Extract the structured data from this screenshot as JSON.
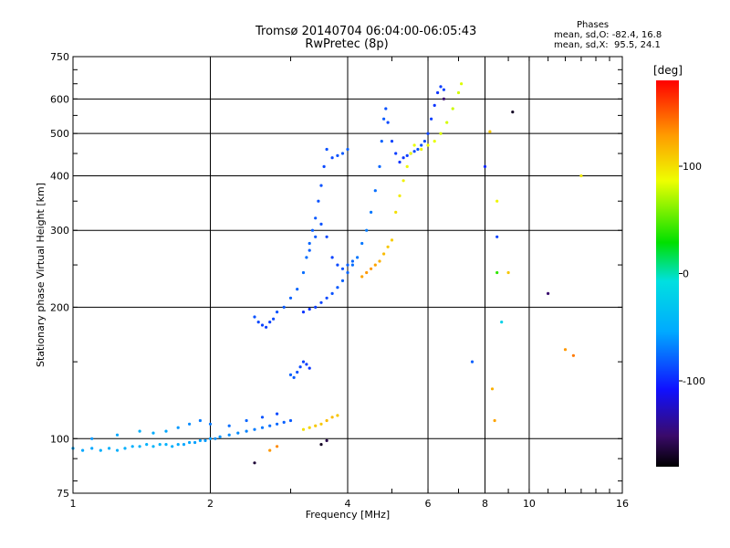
{
  "header": {
    "title_line1": "Tromsø 20140704 06:04:00-06:05:43",
    "title_line2": "RwPretec (8p)"
  },
  "stats": {
    "heading": "Phases",
    "line_o": "mean, sd,O: -82.4, 16.8",
    "line_x": "mean, sd,X:  95.5, 24.1"
  },
  "colorbar": {
    "unit_label": "[deg]",
    "range": [
      -180,
      180
    ],
    "ticks": [
      {
        "value": 100,
        "label": "100"
      },
      {
        "value": 0,
        "label": "0"
      },
      {
        "value": -100,
        "label": "-100"
      }
    ]
  },
  "chart_data": {
    "type": "scatter",
    "title": "Tromsø 20140704 06:04:00-06:05:43",
    "subtitle": "RwPretec (8p)",
    "xlabel": "Frequency [MHz]",
    "ylabel": "Stationary phase Virtual Height [km]",
    "x_scale": "log",
    "y_scale": "log",
    "xlim": [
      1,
      16
    ],
    "ylim": [
      75,
      750
    ],
    "x_ticks": [
      1,
      2,
      4,
      6,
      8,
      10,
      16
    ],
    "x_tick_labels": [
      "1",
      "2",
      "4",
      "6",
      "8",
      "10",
      "16"
    ],
    "y_ticks": [
      75,
      100,
      200,
      300,
      400,
      500,
      600,
      750
    ],
    "y_tick_labels": [
      "75",
      "100",
      "200",
      "300",
      "400",
      "500",
      "600",
      "750"
    ],
    "grid": true,
    "color_quantity": "phase [deg]",
    "series": [
      {
        "points": [
          [
            1.0,
            95,
            -55
          ],
          [
            1.05,
            94,
            -55
          ],
          [
            1.1,
            95,
            -55
          ],
          [
            1.15,
            94,
            -50
          ],
          [
            1.2,
            95,
            -50
          ],
          [
            1.25,
            94,
            -50
          ],
          [
            1.3,
            95,
            -50
          ],
          [
            1.35,
            96,
            -50
          ],
          [
            1.4,
            96,
            -48
          ],
          [
            1.45,
            97,
            -48
          ],
          [
            1.5,
            96,
            -45
          ],
          [
            1.55,
            97,
            -45
          ],
          [
            1.6,
            97,
            -48
          ],
          [
            1.65,
            96,
            -50
          ],
          [
            1.7,
            97,
            -52
          ],
          [
            1.75,
            97,
            -55
          ],
          [
            1.8,
            98,
            -55
          ],
          [
            1.85,
            98,
            -58
          ],
          [
            1.9,
            99,
            -58
          ],
          [
            1.95,
            99,
            -60
          ],
          [
            2.0,
            100,
            -60
          ],
          [
            2.05,
            100,
            -62
          ],
          [
            2.1,
            101,
            -62
          ],
          [
            2.2,
            102,
            -65
          ],
          [
            2.3,
            103,
            -65
          ],
          [
            2.4,
            104,
            -68
          ],
          [
            2.5,
            105,
            -70
          ],
          [
            2.6,
            106,
            -72
          ],
          [
            2.7,
            107,
            -75
          ],
          [
            2.8,
            108,
            -78
          ],
          [
            2.9,
            109,
            -80
          ],
          [
            3.0,
            110,
            -82
          ],
          [
            1.1,
            100,
            -60
          ],
          [
            1.25,
            102,
            -55
          ],
          [
            1.4,
            104,
            -50
          ],
          [
            1.5,
            103,
            -52
          ],
          [
            1.6,
            104,
            -55
          ],
          [
            1.7,
            106,
            -60
          ],
          [
            1.8,
            108,
            -65
          ],
          [
            1.9,
            110,
            -70
          ],
          [
            2.0,
            108,
            -72
          ],
          [
            2.2,
            107,
            -75
          ],
          [
            2.4,
            110,
            -78
          ],
          [
            2.6,
            112,
            -85
          ],
          [
            2.8,
            114,
            -88
          ]
        ]
      },
      {
        "points": [
          [
            2.5,
            190,
            -85
          ],
          [
            2.55,
            185,
            -88
          ],
          [
            2.6,
            182,
            -90
          ],
          [
            2.65,
            180,
            -92
          ],
          [
            2.7,
            185,
            -90
          ],
          [
            2.75,
            188,
            -88
          ],
          [
            2.8,
            195,
            -85
          ],
          [
            2.9,
            200,
            -82
          ],
          [
            3.0,
            210,
            -80
          ],
          [
            3.1,
            220,
            -78
          ],
          [
            3.2,
            240,
            -75
          ],
          [
            3.25,
            260,
            -75
          ],
          [
            3.3,
            280,
            -78
          ],
          [
            3.35,
            300,
            -80
          ],
          [
            3.4,
            320,
            -82
          ],
          [
            3.45,
            350,
            -85
          ],
          [
            3.5,
            380,
            -85
          ],
          [
            3.55,
            420,
            -88
          ],
          [
            3.6,
            460,
            -85
          ],
          [
            3.0,
            140,
            -80
          ],
          [
            3.05,
            138,
            -82
          ],
          [
            3.1,
            142,
            -85
          ],
          [
            3.15,
            146,
            -88
          ],
          [
            3.2,
            150,
            -90
          ],
          [
            3.25,
            148,
            -92
          ],
          [
            3.3,
            145,
            -95
          ],
          [
            3.2,
            195,
            -95
          ],
          [
            3.3,
            198,
            -95
          ],
          [
            3.4,
            200,
            -92
          ],
          [
            3.5,
            205,
            -90
          ],
          [
            3.6,
            210,
            -88
          ],
          [
            3.7,
            215,
            -85
          ],
          [
            3.8,
            222,
            -82
          ],
          [
            3.9,
            230,
            -80
          ],
          [
            4.0,
            240,
            -78
          ],
          [
            4.1,
            250,
            -75
          ],
          [
            4.2,
            260,
            -72
          ],
          [
            4.3,
            280,
            -72
          ],
          [
            4.4,
            300,
            -70
          ],
          [
            4.5,
            330,
            -72
          ],
          [
            4.6,
            370,
            -75
          ],
          [
            4.7,
            420,
            -78
          ],
          [
            4.75,
            480,
            -80
          ],
          [
            4.8,
            540,
            -82
          ],
          [
            4.85,
            570,
            -85
          ],
          [
            4.9,
            530,
            -88
          ],
          [
            5.0,
            480,
            -90
          ],
          [
            5.1,
            450,
            -92
          ],
          [
            5.2,
            430,
            -95
          ],
          [
            5.3,
            440,
            -95
          ],
          [
            5.4,
            445,
            -92
          ],
          [
            5.5,
            450,
            -90
          ],
          [
            5.6,
            455,
            -88
          ],
          [
            5.7,
            460,
            -85
          ],
          [
            5.8,
            470,
            -85
          ],
          [
            5.9,
            480,
            -88
          ],
          [
            6.0,
            500,
            -90
          ],
          [
            6.1,
            540,
            -92
          ],
          [
            6.2,
            580,
            -95
          ],
          [
            6.3,
            620,
            -95
          ],
          [
            6.4,
            640,
            -92
          ],
          [
            6.5,
            630,
            -90
          ],
          [
            3.3,
            270,
            -80
          ],
          [
            3.4,
            290,
            -82
          ],
          [
            3.5,
            310,
            -85
          ],
          [
            3.6,
            290,
            -88
          ],
          [
            3.7,
            260,
            -90
          ],
          [
            3.8,
            250,
            -88
          ],
          [
            3.9,
            245,
            -85
          ],
          [
            4.0,
            250,
            -80
          ],
          [
            4.1,
            255,
            -78
          ],
          [
            3.7,
            440,
            -88
          ],
          [
            3.8,
            445,
            -85
          ],
          [
            3.9,
            450,
            -82
          ],
          [
            4.0,
            460,
            -80
          ]
        ]
      },
      {
        "points": [
          [
            3.2,
            105,
            100
          ],
          [
            3.3,
            106,
            105
          ],
          [
            3.4,
            107,
            110
          ],
          [
            3.5,
            108,
            110
          ],
          [
            3.6,
            110,
            115
          ],
          [
            3.7,
            112,
            115
          ],
          [
            3.8,
            113,
            110
          ],
          [
            4.3,
            235,
            125
          ],
          [
            4.4,
            240,
            130
          ],
          [
            4.5,
            245,
            130
          ],
          [
            4.6,
            250,
            125
          ],
          [
            4.7,
            255,
            120
          ],
          [
            4.8,
            265,
            115
          ],
          [
            4.9,
            275,
            110
          ],
          [
            5.0,
            285,
            108
          ],
          [
            5.1,
            330,
            100
          ],
          [
            5.2,
            360,
            95
          ],
          [
            5.3,
            390,
            92
          ],
          [
            5.4,
            420,
            90
          ],
          [
            5.5,
            450,
            88
          ],
          [
            5.6,
            470,
            85
          ],
          [
            5.8,
            460,
            90
          ],
          [
            6.0,
            470,
            88
          ],
          [
            6.2,
            480,
            85
          ],
          [
            6.4,
            500,
            82
          ],
          [
            6.6,
            530,
            80
          ],
          [
            6.8,
            570,
            78
          ],
          [
            7.0,
            620,
            80
          ],
          [
            7.1,
            650,
            82
          ]
        ]
      },
      {
        "points": [
          [
            3.5,
            97,
            -170
          ],
          [
            3.6,
            99,
            -160
          ],
          [
            2.5,
            88,
            -165
          ],
          [
            6.5,
            600,
            -150
          ],
          [
            8.0,
            420,
            -100
          ],
          [
            8.5,
            290,
            -90
          ],
          [
            9.2,
            560,
            -170
          ],
          [
            11.0,
            215,
            -150
          ],
          [
            7.5,
            150,
            -80
          ],
          [
            8.7,
            185,
            -20
          ],
          [
            8.5,
            240,
            40
          ],
          [
            9.0,
            240,
            110
          ],
          [
            12.0,
            160,
            130
          ],
          [
            12.5,
            155,
            140
          ],
          [
            13.0,
            400,
            95
          ],
          [
            8.3,
            130,
            120
          ],
          [
            8.4,
            110,
            125
          ],
          [
            8.5,
            350,
            90
          ],
          [
            8.2,
            505,
            110
          ],
          [
            2.7,
            94,
            130
          ],
          [
            2.8,
            96,
            135
          ]
        ]
      }
    ]
  }
}
